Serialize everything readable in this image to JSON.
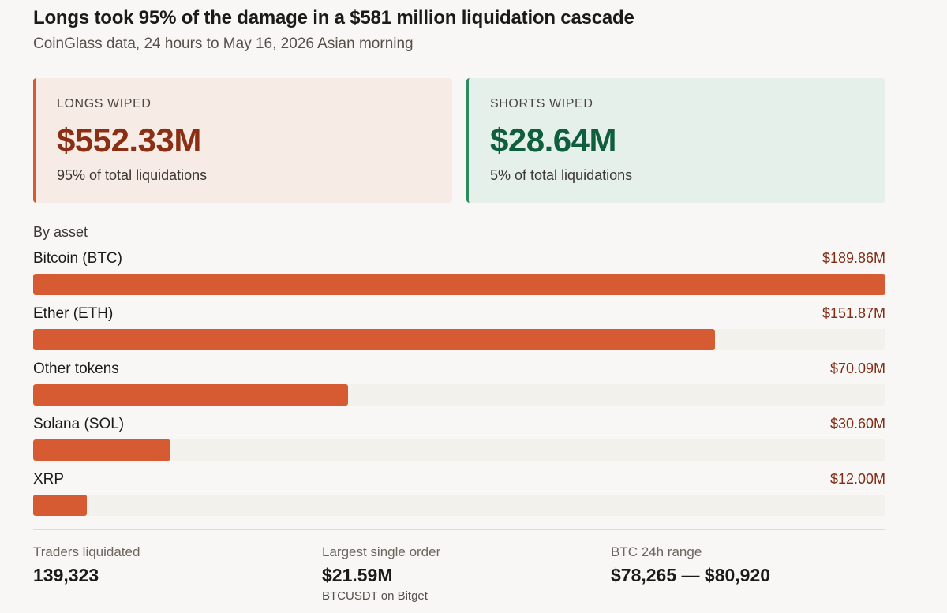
{
  "header": {
    "title": "Longs took 95% of the damage in a $581 million liquidation cascade",
    "subtitle": "CoinGlass data, 24 hours to May 16, 2026 Asian morning"
  },
  "cards": {
    "longs": {
      "label": "LONGS WIPED",
      "value": "$552.33M",
      "note": "95% of total liquidations"
    },
    "shorts": {
      "label": "SHORTS WIPED",
      "value": "$28.64M",
      "note": "5% of total liquidations"
    }
  },
  "chart_data": {
    "type": "bar",
    "orientation": "horizontal",
    "title": "By asset",
    "categories": [
      "Bitcoin (BTC)",
      "Ether (ETH)",
      "Other tokens",
      "Solana (SOL)",
      "XRP"
    ],
    "values": [
      189.86,
      151.87,
      70.09,
      30.6,
      12.0
    ],
    "value_labels": [
      "$189.86M",
      "$151.87M",
      "$70.09M",
      "$30.60M",
      "$12.00M"
    ],
    "xlim": [
      0,
      189.86
    ],
    "colors": {
      "bar": "#d65a32",
      "track": "#f3f1ec",
      "value_text": "#7f2d14"
    }
  },
  "stats": [
    {
      "label": "Traders liquidated",
      "value": "139,323",
      "sub": ""
    },
    {
      "label": "Largest single order",
      "value": "$21.59M",
      "sub": "BTCUSDT on Bitget"
    },
    {
      "label": "BTC 24h range",
      "value": "$78,265 — $80,920",
      "sub": ""
    }
  ],
  "colors": {
    "accent": "#d65a32",
    "longs_bg": "#f6ebe5",
    "longs_text": "#8a2f14",
    "shorts_bg": "#e6f0eb",
    "shorts_text": "#0f5e3d",
    "shorts_border": "#2d8c5e",
    "page_bg": "#f8f7f5"
  }
}
